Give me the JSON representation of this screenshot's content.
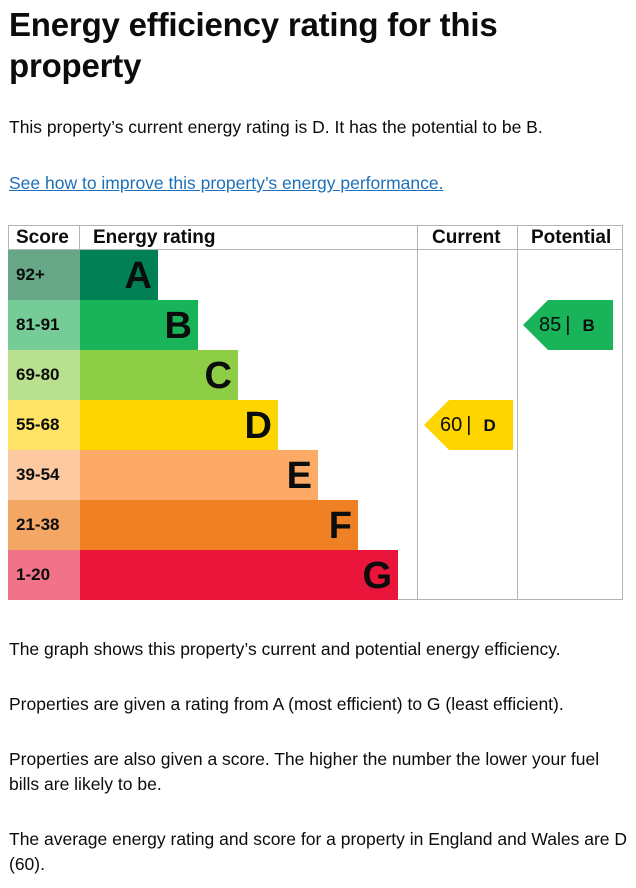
{
  "page": {
    "title": "Energy efficiency rating for this property",
    "intro": "This property’s current energy rating is D. It has the potential to be B.",
    "improve_link": "See how to improve this property’s energy performance.",
    "paragraphs": [
      "The graph shows this property’s current and potential energy efficiency.",
      "Properties are given a rating from A (most efficient) to G (least efficient).",
      "Properties are also given a score. The higher the number the lower your fuel bills are likely to be.",
      "The average energy rating and score for a property in England and Wales are D (60)."
    ]
  },
  "chart_data": {
    "type": "table",
    "headers": {
      "score": "Score",
      "rating": "Energy rating",
      "current": "Current",
      "potential": "Potential"
    },
    "bands": [
      {
        "score_range": "92+",
        "letter": "A",
        "bar_color": "#008054",
        "score_bg": "#67a687"
      },
      {
        "score_range": "81-91",
        "letter": "B",
        "bar_color": "#19b459",
        "score_bg": "#75cc97"
      },
      {
        "score_range": "69-80",
        "letter": "C",
        "bar_color": "#8dce46",
        "score_bg": "#b9e08e"
      },
      {
        "score_range": "55-68",
        "letter": "D",
        "bar_color": "#ffd500",
        "score_bg": "#ffe366"
      },
      {
        "score_range": "39-54",
        "letter": "E",
        "bar_color": "#fcaa65",
        "score_bg": "#fdc9a0"
      },
      {
        "score_range": "21-38",
        "letter": "F",
        "bar_color": "#ef8023",
        "score_bg": "#f4a765"
      },
      {
        "score_range": "1-20",
        "letter": "G",
        "bar_color": "#e9153b",
        "score_bg": "#f07389"
      }
    ],
    "current": {
      "score": "60",
      "separator": "|",
      "letter": "D",
      "color": "#ffd500"
    },
    "potential": {
      "score": "85",
      "separator": "|",
      "letter": "B",
      "color": "#19b459"
    }
  }
}
